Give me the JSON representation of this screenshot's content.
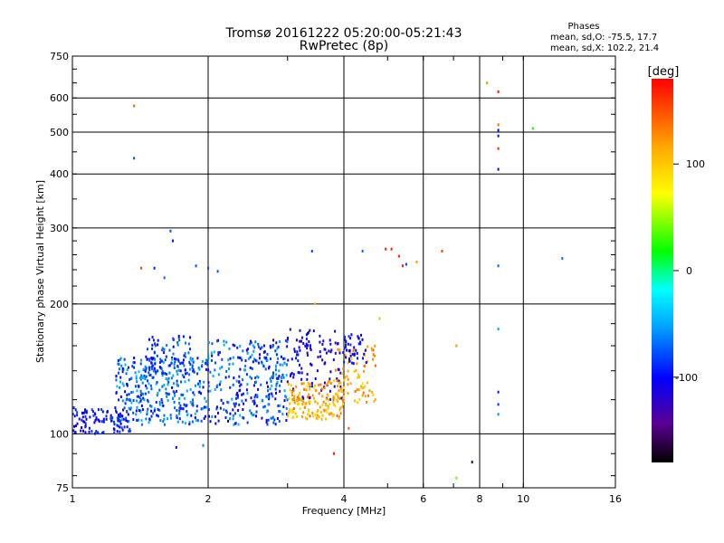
{
  "chart_data": {
    "type": "scatter",
    "title": "Tromsø 20161222 05:20:00-05:21:43",
    "subtitle": "RwPretec (8p)",
    "xlabel": "Frequency [MHz]",
    "ylabel": "Stationary phase Virtual Height [km]",
    "x_scale": "log",
    "y_scale": "log",
    "xlim": [
      1,
      16
    ],
    "ylim": [
      75,
      750
    ],
    "x_ticks": [
      1,
      2,
      4,
      6,
      8,
      10,
      16
    ],
    "y_ticks": [
      75,
      100,
      200,
      300,
      400,
      500,
      600,
      750
    ],
    "grid": true,
    "stats": {
      "header": "Phases",
      "line_o": "mean, sd,O: -75.5, 17.7",
      "line_x": "mean, sd,X: 102.2, 21.4"
    },
    "colorbar": {
      "label": "[deg]",
      "range": [
        -180,
        180
      ],
      "ticks": [
        100,
        0,
        -100
      ],
      "colors": [
        "#000000",
        "#5a0090",
        "#0000ff",
        "#00aaff",
        "#00ffff",
        "#00ff00",
        "#ffff00",
        "#ffaa00",
        "#ff0000"
      ]
    },
    "clusters": [
      {
        "x": [
          1.0,
          1.35
        ],
        "y": [
          100,
          115
        ],
        "phase": [
          -115,
          -75
        ],
        "n": 110
      },
      {
        "x": [
          1.25,
          2.0
        ],
        "y": [
          105,
          150
        ],
        "phase": [
          -105,
          -40
        ],
        "n": 320
      },
      {
        "x": [
          1.45,
          1.85
        ],
        "y": [
          135,
          170
        ],
        "phase": [
          -110,
          -60
        ],
        "n": 90
      },
      {
        "x": [
          2.0,
          3.0
        ],
        "y": [
          105,
          165
        ],
        "phase": [
          -120,
          -40
        ],
        "n": 300
      },
      {
        "x": [
          3.0,
          4.0
        ],
        "y": [
          120,
          175
        ],
        "phase": [
          -130,
          -90
        ],
        "n": 110
      },
      {
        "x": [
          3.0,
          4.0
        ],
        "y": [
          108,
          132
        ],
        "phase": [
          85,
          140
        ],
        "n": 150
      },
      {
        "x": [
          3.8,
          4.7
        ],
        "y": [
          118,
          160
        ],
        "phase": [
          90,
          145
        ],
        "n": 80
      },
      {
        "x": [
          4.0,
          4.5
        ],
        "y": [
          145,
          170
        ],
        "phase": [
          -120,
          -85
        ],
        "n": 40
      }
    ],
    "isolated_points": [
      {
        "x": 1.37,
        "y": 575,
        "phase": 140
      },
      {
        "x": 1.37,
        "y": 435,
        "phase": -75
      },
      {
        "x": 1.65,
        "y": 295,
        "phase": -75
      },
      {
        "x": 1.67,
        "y": 280,
        "phase": -95
      },
      {
        "x": 1.42,
        "y": 242,
        "phase": 155
      },
      {
        "x": 1.52,
        "y": 242,
        "phase": -90
      },
      {
        "x": 1.6,
        "y": 230,
        "phase": -70
      },
      {
        "x": 1.88,
        "y": 245,
        "phase": -75
      },
      {
        "x": 2.0,
        "y": 242,
        "phase": -80
      },
      {
        "x": 2.1,
        "y": 238,
        "phase": -75
      },
      {
        "x": 3.4,
        "y": 265,
        "phase": -80
      },
      {
        "x": 4.4,
        "y": 265,
        "phase": -70
      },
      {
        "x": 4.95,
        "y": 268,
        "phase": 165
      },
      {
        "x": 5.1,
        "y": 268,
        "phase": 170
      },
      {
        "x": 5.3,
        "y": 258,
        "phase": 165
      },
      {
        "x": 5.4,
        "y": 245,
        "phase": 170
      },
      {
        "x": 5.5,
        "y": 247,
        "phase": -80
      },
      {
        "x": 5.8,
        "y": 250,
        "phase": 120
      },
      {
        "x": 6.6,
        "y": 265,
        "phase": 155
      },
      {
        "x": 8.3,
        "y": 650,
        "phase": 120
      },
      {
        "x": 8.8,
        "y": 620,
        "phase": 170
      },
      {
        "x": 8.8,
        "y": 520,
        "phase": 140
      },
      {
        "x": 8.8,
        "y": 505,
        "phase": -100
      },
      {
        "x": 8.8,
        "y": 490,
        "phase": -95
      },
      {
        "x": 8.8,
        "y": 458,
        "phase": 165
      },
      {
        "x": 8.8,
        "y": 410,
        "phase": -100
      },
      {
        "x": 8.8,
        "y": 245,
        "phase": -70
      },
      {
        "x": 8.8,
        "y": 175,
        "phase": -50
      },
      {
        "x": 8.8,
        "y": 125,
        "phase": -95
      },
      {
        "x": 8.8,
        "y": 117,
        "phase": -85
      },
      {
        "x": 8.8,
        "y": 111,
        "phase": -60
      },
      {
        "x": 10.5,
        "y": 510,
        "phase": 20
      },
      {
        "x": 12.2,
        "y": 255,
        "phase": -65
      },
      {
        "x": 7.1,
        "y": 160,
        "phase": 120
      },
      {
        "x": 7.1,
        "y": 79,
        "phase": 40
      },
      {
        "x": 7.7,
        "y": 86,
        "phase": -160
      },
      {
        "x": 3.8,
        "y": 90,
        "phase": 170
      },
      {
        "x": 4.1,
        "y": 103,
        "phase": 145
      },
      {
        "x": 1.7,
        "y": 93,
        "phase": -100
      },
      {
        "x": 1.95,
        "y": 94,
        "phase": -60
      },
      {
        "x": 4.8,
        "y": 185,
        "phase": 110
      },
      {
        "x": 3.45,
        "y": 200,
        "phase": 110
      }
    ]
  }
}
